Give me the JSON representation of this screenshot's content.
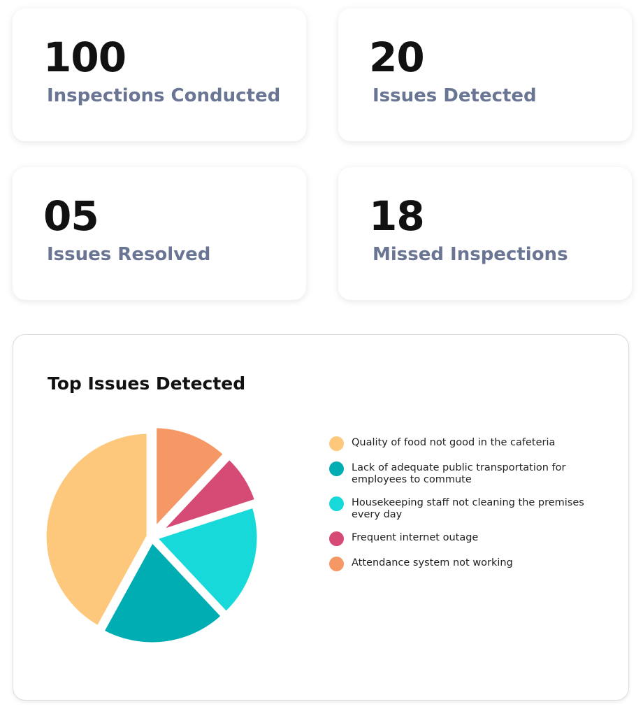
{
  "stats": [
    {
      "value": "100",
      "label": "Inspections Conducted"
    },
    {
      "value": "20",
      "label": "Issues Detected"
    },
    {
      "value": "05",
      "label": "Issues Resolved"
    },
    {
      "value": "18",
      "label": "Missed Inspections"
    }
  ],
  "chart_data": {
    "type": "pie",
    "title": "Top Issues Detected",
    "legend_position": "right",
    "slices": [
      {
        "label": "Quality of food not good in the cafeteria",
        "value": 42,
        "color": "#fdc87c"
      },
      {
        "label": "Lack of adequate public transportation for employees to commute",
        "value": 20,
        "color": "#00adb3"
      },
      {
        "label": "Housekeeping staff not cleaning the premises every day",
        "value": 18,
        "color": "#17d9d9"
      },
      {
        "label": "Frequent internet outage",
        "value": 8,
        "color": "#d64a76"
      },
      {
        "label": "Attendance system not working",
        "value": 12,
        "color": "#f59866"
      }
    ]
  }
}
